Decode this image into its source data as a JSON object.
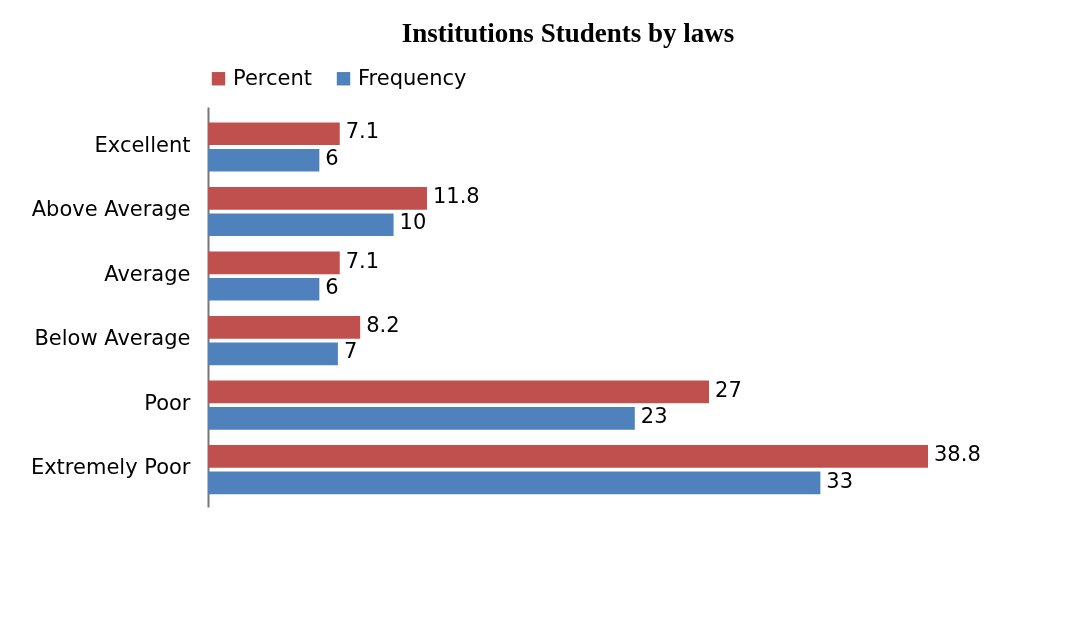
{
  "chart_data": {
    "type": "bar",
    "orientation": "horizontal",
    "title": "Institutions Students by laws",
    "categories": [
      "Excellent",
      "Above Average",
      "Average",
      "Below Average",
      "Poor",
      "Extremely Poor"
    ],
    "series": [
      {
        "name": "Percent",
        "color": "#c0504d",
        "values": [
          7.1,
          11.8,
          7.1,
          8.2,
          27,
          38.8
        ]
      },
      {
        "name": "Frequency",
        "color": "#4f81bd",
        "values": [
          6,
          10,
          6,
          7,
          23,
          33
        ]
      }
    ],
    "data_labels": true,
    "legend": "top"
  }
}
